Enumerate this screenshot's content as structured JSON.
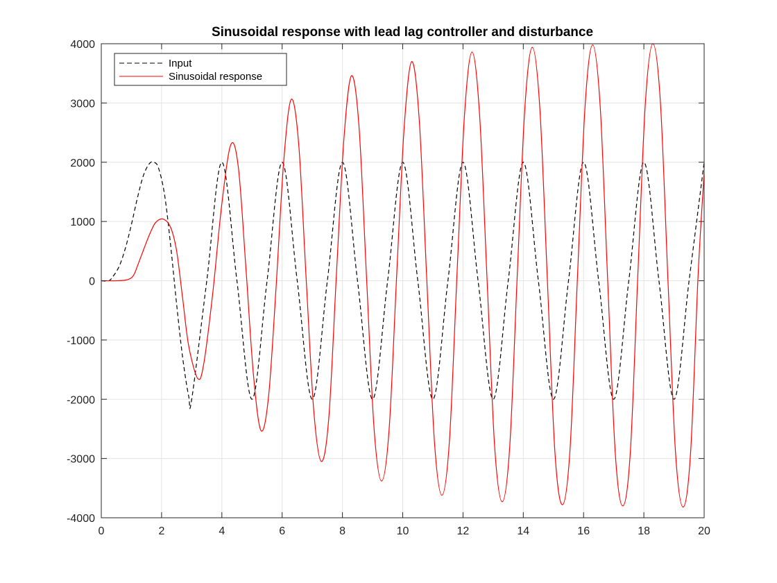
{
  "chart_data": {
    "type": "line",
    "title": "Sinusoidal response with lead lag controller and disturbance",
    "xlabel": "",
    "ylabel": "",
    "xlim": [
      0,
      20
    ],
    "ylim": [
      -4000,
      4000
    ],
    "xticks": [
      "0",
      "2",
      "4",
      "6",
      "8",
      "10",
      "12",
      "14",
      "16",
      "18",
      "20"
    ],
    "yticks": [
      "4000",
      "3000",
      "2000",
      "1000",
      "0",
      "-1000",
      "-2000",
      "-3000",
      "-4000"
    ],
    "grid": true,
    "legend_position": "top-left",
    "series": [
      {
        "name": "Input",
        "color": "#000000",
        "style": "dashed",
        "x": [
          0,
          0.25,
          0.4,
          0.6,
          0.8,
          1.0,
          1.2,
          1.4,
          1.6,
          1.75,
          1.9,
          2.1,
          2.3,
          2.5,
          2.7,
          2.9,
          3.0,
          3.5,
          4.0,
          4.5,
          5.0,
          5.5,
          6.0,
          6.5,
          7.0,
          7.5,
          8.0,
          8.5,
          9.0,
          9.5,
          10.0,
          10.5,
          11.0,
          11.5,
          12.0,
          12.5,
          13.0,
          13.5,
          14.0,
          14.5,
          15.0,
          15.5,
          16.0,
          16.5,
          17.0,
          17.5,
          18.0,
          18.5,
          19.0,
          19.5,
          20.0
        ],
        "y": [
          0,
          0,
          80,
          250,
          550,
          950,
          1400,
          1780,
          1980,
          2000,
          1900,
          1450,
          600,
          -400,
          -1300,
          -1950,
          -2000,
          0,
          2000,
          0,
          -2000,
          0,
          2000,
          0,
          -2000,
          0,
          2000,
          0,
          -2000,
          0,
          2000,
          0,
          -2000,
          0,
          2000,
          0,
          -2000,
          0,
          2000,
          0,
          -2000,
          0,
          2000,
          0,
          -2000,
          0,
          2000,
          0,
          -2000,
          0,
          2000
        ]
      },
      {
        "name": "Sinusoidal response",
        "color": "#ff0000",
        "style": "solid",
        "x": [
          0,
          0.5,
          0.8,
          1.0,
          1.1,
          1.2,
          1.4,
          1.6,
          1.8,
          2.05,
          2.3,
          2.5,
          2.7,
          2.9,
          3.2,
          3.4,
          3.7,
          4.0,
          4.3,
          4.55,
          4.8,
          5.05,
          5.3,
          5.55,
          5.8,
          6.05,
          6.3,
          6.55,
          6.8,
          7.05,
          7.3,
          7.55,
          7.8,
          8.05,
          8.3,
          8.55,
          8.8,
          9.05,
          9.3,
          9.55,
          9.8,
          10.05,
          10.3,
          10.55,
          10.8,
          11.05,
          11.3,
          11.55,
          11.8,
          12.05,
          12.3,
          12.55,
          12.8,
          13.05,
          13.3,
          13.55,
          13.8,
          14.05,
          14.3,
          14.55,
          14.8,
          15.05,
          15.3,
          15.55,
          15.8,
          16.05,
          16.3,
          16.55,
          16.8,
          17.05,
          17.3,
          17.55,
          17.8,
          18.05,
          18.3,
          18.55,
          18.8,
          19.05,
          19.3,
          19.55,
          19.8,
          20.0
        ],
        "y": [
          0,
          0,
          10,
          50,
          120,
          250,
          520,
          780,
          980,
          1040,
          900,
          500,
          -300,
          -1100,
          -1650,
          -1400,
          -200,
          1300,
          2300,
          1900,
          200,
          -1600,
          -2530,
          -1950,
          -100,
          2000,
          3060,
          2300,
          0,
          -2200,
          -3050,
          -2300,
          100,
          2400,
          3460,
          2600,
          50,
          -2500,
          -3380,
          -2500,
          100,
          2600,
          3700,
          2700,
          0,
          -2700,
          -3620,
          -2700,
          100,
          2800,
          3860,
          2800,
          0,
          -2800,
          -3730,
          -2800,
          100,
          2900,
          3940,
          2900,
          0,
          -2900,
          -3780,
          -2850,
          100,
          2950,
          3980,
          2950,
          0,
          -2900,
          -3800,
          -2900,
          100,
          3000,
          4000,
          3000,
          0,
          -2900,
          -3820,
          -2900,
          100,
          1820
        ]
      }
    ]
  }
}
